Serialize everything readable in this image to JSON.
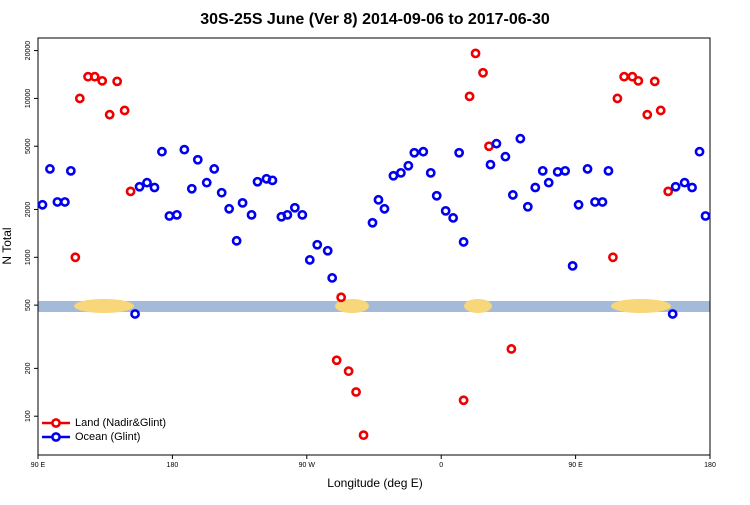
{
  "chart_data": {
    "type": "scatter",
    "title": "30S-25S June (Ver 8)   2014-09-06 to 2017-06-30",
    "x_label": "Longitude (deg E)",
    "y_label": "N Total",
    "xlim": [
      90,
      540
    ],
    "ylim": [
      57,
      24000
    ],
    "log_y": true,
    "legend": "lower left",
    "xticks": [
      {
        "value": 90,
        "label": "90 E"
      },
      180,
      {
        "value": 270,
        "label": "90 W"
      },
      {
        "value": 360,
        "label": "0"
      },
      {
        "value": 450,
        "label": "90 E"
      },
      {
        "value": 540,
        "label": "180"
      }
    ],
    "yticks": [
      100,
      200,
      500,
      1000,
      2000,
      5000,
      10000,
      20000
    ],
    "series": [
      {
        "name": "Land (Nadir&Glint)",
        "color": "#ee0000",
        "x": [
          115,
          118,
          123.5,
          128,
          133,
          138,
          143,
          148,
          152,
          293,
          290,
          298,
          303,
          308,
          375,
          379,
          383,
          388,
          392,
          407,
          475,
          478,
          482.5,
          488,
          492,
          498,
          503,
          507,
          512
        ],
        "values": [
          1000,
          10000,
          13700,
          13700,
          12900,
          7900,
          12800,
          8400,
          2600,
          560,
          225,
          192,
          142,
          76,
          126,
          10300,
          19200,
          14500,
          5000,
          265,
          1000,
          10000,
          13700,
          13700,
          12900,
          7900,
          12800,
          8400,
          2600
        ]
      },
      {
        "name": "Ocean (Glint)",
        "color": "#0000ee",
        "x": [
          93,
          98,
          103,
          108,
          112,
          155,
          158,
          163,
          168,
          173,
          178,
          183,
          188,
          193,
          197,
          203,
          208,
          213,
          218,
          223,
          227,
          233,
          237,
          243,
          247,
          253,
          257,
          262,
          267,
          272,
          277,
          284,
          287,
          314,
          318,
          322,
          328,
          333,
          338,
          342,
          348,
          353,
          357,
          363,
          368,
          372,
          375,
          393,
          397,
          403,
          408,
          413,
          418,
          423,
          428,
          432,
          438,
          443,
          448,
          452,
          458,
          463,
          468,
          472,
          515,
          517,
          523,
          528,
          533,
          537
        ],
        "values": [
          2140,
          3600,
          2230,
          2230,
          3500,
          440,
          2780,
          2950,
          2750,
          4620,
          1820,
          1850,
          4760,
          2700,
          4110,
          2950,
          3600,
          2550,
          2020,
          1270,
          2200,
          1850,
          2990,
          3120,
          3050,
          1800,
          1850,
          2050,
          1850,
          963,
          1200,
          1100,
          742,
          1650,
          2300,
          2020,
          3260,
          3400,
          3770,
          4550,
          4620,
          3400,
          2440,
          1960,
          1770,
          4550,
          1250,
          3830,
          5190,
          4300,
          2470,
          5580,
          2080,
          2750,
          3500,
          2950,
          3450,
          3500,
          883,
          2140,
          3600,
          2230,
          2230,
          3500,
          440,
          2780,
          2950,
          2750,
          4620,
          1820
        ]
      }
    ]
  }
}
